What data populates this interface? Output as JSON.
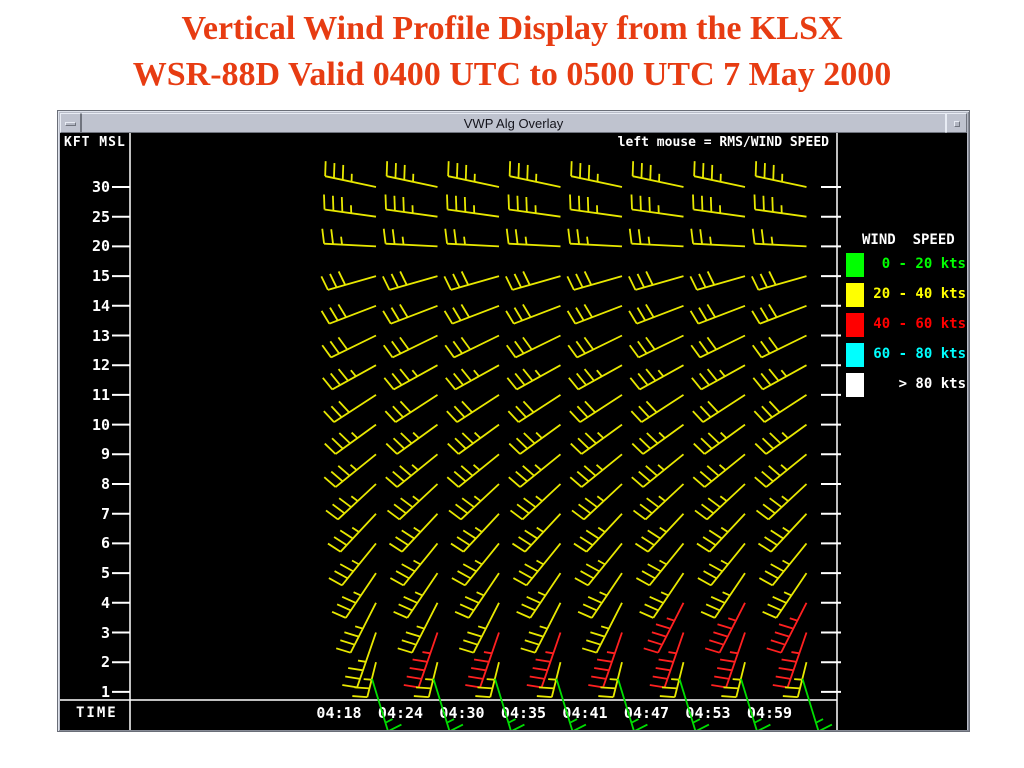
{
  "slide": {
    "title_line1": "Vertical Wind Profile Display from the KLSX",
    "title_line2": "WSR-88D Valid 0400 UTC to 0500 UTC 7 May 2000",
    "title_color": "#e73c12"
  },
  "window": {
    "title": "VWP Alg Overlay"
  },
  "chart_data": {
    "type": "wind-barb-profile",
    "title": "VWP Alg Overlay",
    "y_axis_label": "KFT MSL",
    "x_axis_label": "TIME",
    "hint": "left mouse = RMS/WIND SPEED",
    "times": [
      "04:18",
      "04:24",
      "04:30",
      "04:35",
      "04:41",
      "04:47",
      "04:53",
      "04:59"
    ],
    "heights_kft": [
      "30",
      "25",
      "20",
      "15",
      "14",
      "13",
      "12",
      "11",
      "10",
      "9",
      "8",
      "7",
      "6",
      "5",
      "4",
      "3",
      "2",
      "1"
    ],
    "legend": {
      "title": "WIND  SPEED",
      "entries": [
        {
          "range": "0 - 20 kts",
          "color": "#00ff00"
        },
        {
          "range": "20 - 40 kts",
          "color": "#ffff00"
        },
        {
          "range": "40 - 60 kts",
          "color": "#ff0000"
        },
        {
          "range": "60 - 80 kts",
          "color": "#00ffff"
        },
        {
          "range": "> 80 kts",
          "color": "#ffffff"
        }
      ]
    },
    "barb_colors": {
      "yellow": "#e8e800",
      "red": "#ff2020",
      "green": "#00dd00"
    },
    "axis_color": "#ffffff",
    "rows": [
      {
        "height": "30",
        "dir": 168,
        "ticks": 3.5,
        "len": 52,
        "color": "yellow"
      },
      {
        "height": "25",
        "dir": 172,
        "ticks": 3.5,
        "len": 52,
        "color": "yellow"
      },
      {
        "height": "20",
        "dir": 177,
        "ticks": 2.5,
        "len": 52,
        "color": "yellow"
      },
      {
        "height": "15",
        "dir": 196,
        "ticks": 3,
        "len": 50,
        "color": "yellow"
      },
      {
        "height": "14",
        "dir": 201,
        "ticks": 3,
        "len": 50,
        "color": "yellow"
      },
      {
        "height": "13",
        "dir": 206,
        "ticks": 3,
        "len": 50,
        "color": "yellow"
      },
      {
        "height": "12",
        "dir": 209,
        "ticks": 3.5,
        "len": 50,
        "color": "yellow"
      },
      {
        "height": "11",
        "dir": 213,
        "ticks": 3,
        "len": 50,
        "color": "yellow"
      },
      {
        "height": "10",
        "dir": 216,
        "ticks": 3.5,
        "len": 50,
        "color": "yellow"
      },
      {
        "height": "9",
        "dir": 219,
        "ticks": 3.5,
        "len": 52,
        "color": "yellow"
      },
      {
        "height": "8",
        "dir": 223,
        "ticks": 3.5,
        "len": 52,
        "color": "yellow"
      },
      {
        "height": "7",
        "dir": 227,
        "ticks": 3.5,
        "len": 52,
        "color": "yellow"
      },
      {
        "height": "6",
        "dir": 231,
        "ticks": 3.5,
        "len": 54,
        "color": "yellow"
      },
      {
        "height": "5",
        "dir": 236,
        "ticks": 3.5,
        "len": 54,
        "color": "yellow"
      },
      {
        "height": "4",
        "dir": 243,
        "ticks": 3.5,
        "len": 56,
        "color": "yellow",
        "col_overrides": {
          "5": {
            "color": "red",
            "ticks": 4.5
          },
          "6": {
            "color": "red",
            "ticks": 4.5
          },
          "7": {
            "color": "red",
            "ticks": 4.5
          }
        }
      },
      {
        "height": "3",
        "dir": 251,
        "ticks": 4.5,
        "len": 58,
        "color": "red",
        "col_overrides": {
          "0": {
            "color": "yellow",
            "ticks": 3.5
          }
        }
      },
      {
        "height": "2",
        "dir": 256,
        "ticks": 2.5,
        "len": 36,
        "color": "yellow"
      },
      {
        "height": "1",
        "dir": 287,
        "ticks": 1.5,
        "len": 55,
        "color": "green",
        "tick_dir": 27
      }
    ]
  }
}
